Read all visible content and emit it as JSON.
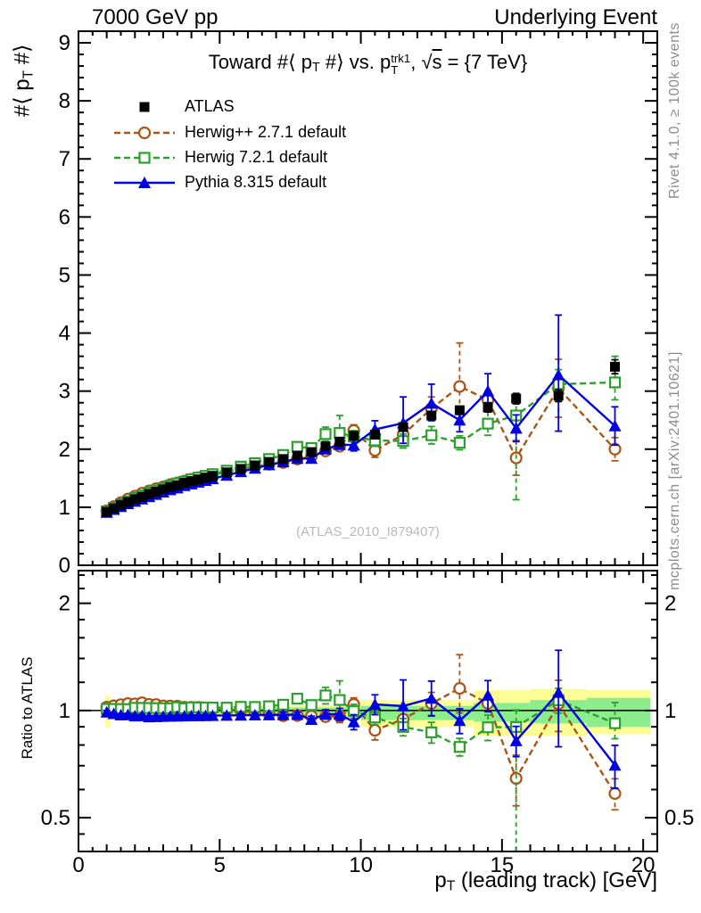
{
  "header": {
    "left": "7000 GeV pp",
    "right": "Underlying Event"
  },
  "title_parts": {
    "p1": "Toward #⟨ p",
    "p2": "T",
    "p3": " #⟩ vs. p",
    "p4": "T",
    "p5": "trk1",
    "p6": ", ",
    "sqrt_sym": "√",
    "sqrt_arg": "s",
    "p7": " = {7 TeV}"
  },
  "ylabel_parts": {
    "y1": "#⟨ p",
    "y2": "T",
    "y3": " #⟩"
  },
  "xlabel_parts": {
    "x1": "p",
    "x2": "T",
    "x3": " (leading track) [GeV]"
  },
  "ratio_ylabel": "Ratio to ATLAS",
  "watermark": "(ATLAS_2010_I879407)",
  "side_notes": {
    "top": "Rivet 4.1.0, ≥ 100k events",
    "bottom": "mcplots.cern.ch [arXiv:2401.10621]"
  },
  "legend": {
    "items": [
      {
        "label": "ATLAS",
        "series": 0
      },
      {
        "label": "Herwig++ 2.7.1 default",
        "series": 1
      },
      {
        "label": "Herwig 7.2.1 default",
        "series": 2
      },
      {
        "label": "Pythia 8.315 default",
        "series": 3
      }
    ]
  },
  "chart_data": {
    "type": "line",
    "title": "Toward #⟨ p_T #⟩ vs. p_T^{trk1}, √s = {7 TeV}",
    "xlabel": "p_T (leading track) [GeV]",
    "ylabel": "#⟨ p_T #⟩",
    "ratio_label": "Ratio to ATLAS",
    "xlim": [
      0,
      20.5
    ],
    "ylim": [
      0,
      9.2
    ],
    "ratio_ylim": [
      0.402,
      2.47
    ],
    "ratio_scale": "log",
    "axes": {
      "x_ticks": [
        0,
        5,
        10,
        15,
        20
      ],
      "x_tick_labels": [
        "0",
        "5",
        "10",
        "15",
        "20"
      ],
      "y_ticks": [
        0,
        1,
        2,
        3,
        4,
        5,
        6,
        7,
        8,
        9
      ],
      "y_tick_labels": [
        "0",
        "1",
        "2",
        "3",
        "4",
        "5",
        "6",
        "7",
        "8",
        "9"
      ],
      "ratio_ticks": [
        2,
        1,
        0.5
      ],
      "ratio_tick_labels": [
        "2",
        "1",
        "0.5"
      ],
      "ratio_minor_ticks": [
        2.4,
        2.2,
        1.8,
        1.6,
        1.4,
        1.2,
        0.9,
        0.8,
        0.7,
        0.6,
        0.45
      ]
    },
    "x": [
      1.0,
      1.25,
      1.5,
      1.75,
      2.0,
      2.25,
      2.5,
      2.75,
      3.0,
      3.25,
      3.5,
      3.75,
      4.0,
      4.25,
      4.5,
      4.75,
      5.25,
      5.75,
      6.25,
      6.75,
      7.25,
      7.75,
      8.25,
      8.75,
      9.25,
      9.75,
      10.5,
      11.5,
      12.5,
      13.5,
      14.5,
      15.5,
      17.0,
      19.0
    ],
    "series": [
      {
        "name": "ATLAS",
        "color": "#000000",
        "marker": "square-filled",
        "line": "none",
        "values": [
          0.92,
          0.98,
          1.04,
          1.09,
          1.14,
          1.18,
          1.23,
          1.27,
          1.31,
          1.35,
          1.38,
          1.42,
          1.45,
          1.48,
          1.51,
          1.54,
          1.6,
          1.66,
          1.72,
          1.78,
          1.83,
          1.89,
          1.95,
          2.05,
          2.13,
          2.23,
          2.25,
          2.38,
          2.58,
          2.67,
          2.72,
          2.87,
          2.92,
          3.42
        ],
        "err": [
          0.01,
          0.01,
          0.01,
          0.01,
          0.01,
          0.01,
          0.01,
          0.01,
          0.01,
          0.01,
          0.01,
          0.01,
          0.01,
          0.01,
          0.01,
          0.01,
          0.02,
          0.02,
          0.02,
          0.02,
          0.02,
          0.02,
          0.03,
          0.03,
          0.04,
          0.04,
          0.05,
          0.05,
          0.06,
          0.07,
          0.08,
          0.09,
          0.1,
          0.12
        ]
      },
      {
        "name": "Herwig++ 2.7.1 default",
        "color": "#aa5513",
        "marker": "circle-open",
        "line": "dash",
        "values": [
          0.94,
          1.01,
          1.08,
          1.14,
          1.19,
          1.24,
          1.28,
          1.32,
          1.35,
          1.39,
          1.42,
          1.45,
          1.48,
          1.51,
          1.53,
          1.56,
          1.61,
          1.66,
          1.7,
          1.74,
          1.77,
          1.83,
          1.88,
          1.97,
          2.05,
          2.32,
          1.98,
          2.25,
          2.7,
          3.08,
          2.85,
          1.85,
          3.05,
          2.0
        ],
        "err": [
          0.01,
          0.01,
          0.01,
          0.01,
          0.01,
          0.01,
          0.01,
          0.01,
          0.01,
          0.01,
          0.01,
          0.01,
          0.01,
          0.01,
          0.01,
          0.01,
          0.02,
          0.02,
          0.02,
          0.02,
          0.03,
          0.03,
          0.05,
          0.06,
          0.08,
          0.1,
          0.12,
          0.15,
          0.2,
          [
            0.45,
            0.75
          ],
          0.15,
          0.3,
          0.5,
          0.2
        ]
      },
      {
        "name": "Herwig 7.2.1 default",
        "color": "#2ca02c",
        "marker": "square-open",
        "line": "dash",
        "values": [
          0.93,
          0.99,
          1.05,
          1.1,
          1.16,
          1.2,
          1.25,
          1.29,
          1.33,
          1.37,
          1.41,
          1.44,
          1.48,
          1.51,
          1.54,
          1.57,
          1.63,
          1.7,
          1.76,
          1.83,
          1.9,
          2.04,
          2.02,
          2.26,
          2.28,
          2.22,
          2.15,
          2.14,
          2.24,
          2.11,
          2.44,
          2.58,
          3.12,
          3.15
        ],
        "err": [
          0.01,
          0.01,
          0.01,
          0.01,
          0.01,
          0.01,
          0.01,
          0.01,
          0.01,
          0.01,
          0.01,
          0.01,
          0.01,
          0.01,
          0.01,
          0.01,
          0.02,
          0.02,
          0.02,
          0.03,
          0.03,
          0.05,
          0.06,
          0.12,
          [
            0.15,
            0.3
          ],
          0.1,
          0.1,
          0.12,
          0.15,
          0.12,
          0.2,
          [
            1.45,
            0.3
          ],
          0.25,
          [
            0.3,
            0.45
          ]
        ]
      },
      {
        "name": "Pythia 8.315 default",
        "color": "#0000e0",
        "marker": "triangle-filled",
        "line": "solid",
        "values": [
          0.91,
          0.96,
          1.01,
          1.06,
          1.1,
          1.14,
          1.18,
          1.22,
          1.26,
          1.3,
          1.33,
          1.37,
          1.4,
          1.43,
          1.46,
          1.49,
          1.55,
          1.61,
          1.67,
          1.73,
          1.78,
          1.84,
          1.84,
          2.0,
          2.08,
          2.07,
          2.34,
          2.45,
          2.79,
          2.5,
          3.0,
          2.36,
          3.28,
          2.4
        ],
        "err": [
          0.01,
          0.01,
          0.01,
          0.01,
          0.01,
          0.01,
          0.01,
          0.01,
          0.01,
          0.01,
          0.01,
          0.01,
          0.01,
          0.01,
          0.01,
          0.01,
          0.02,
          0.02,
          0.02,
          0.02,
          0.03,
          0.03,
          0.04,
          0.06,
          0.08,
          0.1,
          0.15,
          [
            0.35,
            0.45
          ],
          [
            0.3,
            0.33
          ],
          0.2,
          0.3,
          0.23,
          [
            0.97,
            1.03
          ],
          0.33
        ]
      }
    ],
    "bands": [
      {
        "x0": 0.95,
        "x1": 1.125,
        "yellow": [
          0.9,
          1.1
        ],
        "green": [
          0.97,
          1.03
        ]
      },
      {
        "x0": 1.125,
        "x1": 10.0,
        "yellow": [
          0.965,
          1.035
        ],
        "green": [
          0.98,
          1.02
        ]
      },
      {
        "x0": 10.0,
        "x1": 14.0,
        "yellow": [
          0.9,
          1.07
        ],
        "green": [
          0.94,
          1.03
        ]
      },
      {
        "x0": 14.0,
        "x1": 16.0,
        "yellow": [
          0.85,
          1.14
        ],
        "green": [
          0.93,
          1.05
        ]
      },
      {
        "x0": 16.0,
        "x1": 18.0,
        "yellow": [
          0.85,
          1.15
        ],
        "green": [
          0.92,
          1.07
        ]
      },
      {
        "x0": 18.0,
        "x1": 20.25,
        "yellow": [
          0.86,
          1.14
        ],
        "green": [
          0.9,
          1.085
        ]
      }
    ],
    "colors": {
      "band_yellow": "#fdfd96",
      "band_green": "#8ced8c",
      "reference_line": "#000000"
    }
  }
}
